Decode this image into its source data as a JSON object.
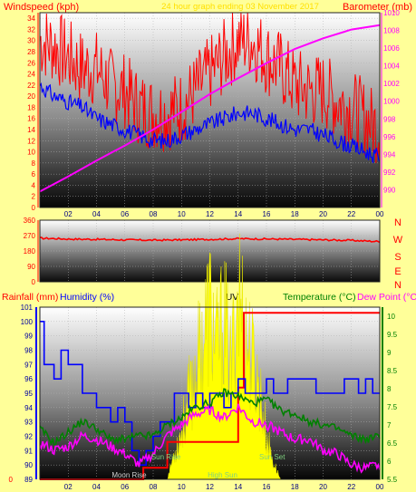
{
  "header": {
    "left_label": "Windspeed (kph)",
    "center_label": "24 hour graph ending 03 November 2017",
    "right_label": "Barometer (mb)"
  },
  "wind_dir_letters": [
    "N",
    "W",
    "S",
    "E",
    "N"
  ],
  "bottom_labels": {
    "rainfall": "Rainfall (mm)",
    "humidity": "Humidity (%)",
    "uv": "UV",
    "temperature": "Temperature (°C)",
    "dewpoint": "Dew Point (°C)"
  },
  "sun_moon_labels": [
    {
      "text": "Moon Rise",
      "hour": 6.3,
      "pos": "bottom",
      "color": "#d0d0d0"
    },
    {
      "text": "Sun Rise",
      "hour": 8.9,
      "pos": "mid",
      "color": "#7fd07f"
    },
    {
      "text": "High Sun",
      "hour": 12.9,
      "pos": "bottom",
      "color": "#7fd07f"
    },
    {
      "text": "Sun Set",
      "hour": 16.4,
      "pos": "mid",
      "color": "#7fd07f"
    }
  ],
  "colors": {
    "background": "#ffff99",
    "wind_gust": "#ff0000",
    "wind_avg": "#0000ff",
    "barometer": "#ff00ff",
    "wind_direction": "#ff0000",
    "rainfall": "#ff0000",
    "humidity": "#0000ff",
    "temperature": "#008000",
    "dewpoint": "#ff00ff",
    "uv": "#ffff00",
    "axis_text": "#ff0000",
    "axis_right_bottom": "#008000"
  },
  "chart_data": [
    {
      "type": "line",
      "title": "24 hour graph ending 03 November 2017",
      "x": {
        "unit": "hour",
        "range": [
          0,
          24
        ],
        "ticks": [
          "02",
          "04",
          "06",
          "08",
          "10",
          "12",
          "14",
          "16",
          "18",
          "20",
          "22",
          "00"
        ]
      },
      "left_axis": {
        "label": "Windspeed (kph)",
        "range": [
          0,
          35
        ],
        "ticks": [
          0,
          2,
          4,
          6,
          8,
          10,
          12,
          14,
          16,
          18,
          20,
          22,
          24,
          26,
          28,
          30,
          32,
          34
        ]
      },
      "right_axis": {
        "label": "Barometer (mb)",
        "range": [
          988,
          1010
        ],
        "ticks": [
          990,
          992,
          994,
          996,
          998,
          1000,
          1002,
          1004,
          1006,
          1008,
          1010
        ]
      },
      "series": [
        {
          "name": "Windspeed (kph)",
          "key": "gust",
          "axis": "left",
          "x": [
            0,
            1,
            2,
            3,
            4,
            5,
            6,
            7,
            8,
            9,
            10,
            11,
            12,
            13,
            14,
            15,
            16,
            17,
            18,
            19,
            20,
            21,
            22,
            23,
            24
          ],
          "values": [
            30,
            29,
            27,
            25,
            25,
            22,
            21,
            18,
            17,
            17,
            18,
            21,
            24,
            27,
            30,
            30,
            27,
            25,
            22,
            21,
            21,
            19,
            18,
            16,
            14
          ]
        },
        {
          "key": "avg",
          "axis": "left",
          "x": [
            0,
            1,
            2,
            3,
            4,
            5,
            6,
            7,
            8,
            9,
            10,
            11,
            12,
            13,
            14,
            15,
            16,
            17,
            18,
            19,
            20,
            21,
            22,
            23,
            24
          ],
          "values": [
            22,
            20,
            19,
            18,
            16,
            15,
            14,
            13,
            12,
            12,
            13,
            14,
            15,
            16,
            17,
            17,
            16,
            15,
            14,
            14,
            13,
            12,
            11,
            10,
            9
          ]
        },
        {
          "name": "Barometer (mb)",
          "key": "baro",
          "axis": "right",
          "x": [
            0,
            2,
            4,
            6,
            8,
            10,
            12,
            14,
            16,
            18,
            20,
            22,
            24
          ],
          "values": [
            989.8,
            991.5,
            993.3,
            995,
            996.8,
            998.8,
            1000.8,
            1002.6,
            1004.3,
            1005.9,
            1007.1,
            1008.1,
            1008.6
          ]
        }
      ]
    },
    {
      "type": "line",
      "x": {
        "unit": "hour",
        "range": [
          0,
          24
        ]
      },
      "y": {
        "range": [
          0,
          360
        ],
        "ticks": [
          0,
          90,
          180,
          270,
          360
        ]
      },
      "series": [
        {
          "key": "direction",
          "x": [
            0,
            2,
            4,
            6,
            8,
            10,
            12,
            14,
            16,
            18,
            20,
            22,
            24
          ],
          "values": [
            255,
            250,
            248,
            245,
            243,
            245,
            248,
            252,
            250,
            248,
            245,
            242,
            235
          ]
        }
      ]
    },
    {
      "type": "line",
      "x": {
        "unit": "hour",
        "range": [
          0,
          24
        ],
        "ticks": [
          "02",
          "04",
          "06",
          "08",
          "10",
          "12",
          "14",
          "16",
          "18",
          "20",
          "22",
          "00"
        ]
      },
      "left_axis": {
        "label": "Humidity (%)",
        "range": [
          89,
          101
        ],
        "ticks": [
          89,
          90,
          91,
          92,
          93,
          94,
          95,
          96,
          97,
          98,
          99,
          100,
          101
        ]
      },
      "right_axis": {
        "label": "Temperature (°C)",
        "range": [
          5.5,
          10.25
        ],
        "ticks": [
          5.5,
          6,
          6.5,
          7,
          7.5,
          8,
          8.5,
          9,
          9.5,
          10
        ]
      },
      "rain_axis": {
        "label": "Rainfall (mm)",
        "ticks": [
          0
        ]
      },
      "series": [
        {
          "name": "Rainfall (mm)",
          "key": "rain",
          "x": [
            0,
            7.3,
            7.3,
            9.0,
            9.0,
            14.0,
            14.0,
            14.4,
            14.4,
            24
          ],
          "values": [
            0,
            0,
            0.04,
            0.04,
            0.13,
            0.13,
            0.32,
            0.32,
            0.58,
            0.58
          ]
        },
        {
          "name": "Humidity (%)",
          "key": "humidity",
          "axis": "left",
          "x": [
            0,
            0.3,
            0.7,
            1,
            1.5,
            2,
            2.5,
            3,
            3.5,
            4,
            4.5,
            5,
            5.5,
            6,
            6.5,
            7,
            7.5,
            8,
            8.5,
            9,
            9.5,
            10,
            10.5,
            11,
            11.5,
            12,
            12.5,
            13,
            13.5,
            14,
            14.5,
            15,
            15.5,
            16,
            16.5,
            17,
            17.5,
            18,
            18.5,
            19,
            19.5,
            20,
            20.5,
            21,
            21.5,
            22,
            22.5,
            23,
            23.5,
            24
          ],
          "values": [
            100,
            97,
            97,
            96,
            98,
            97,
            97,
            95,
            95,
            94,
            94,
            93,
            94,
            93,
            91,
            90,
            91,
            92,
            93,
            93,
            95,
            95,
            94,
            95,
            94,
            95,
            95,
            94,
            95,
            96,
            95,
            95,
            95,
            96,
            95,
            95,
            96,
            96,
            96,
            96,
            95,
            95,
            95,
            95,
            96,
            96,
            95,
            96,
            95,
            95
          ]
        },
        {
          "name": "Temperature (°C)",
          "key": "temp",
          "axis": "right",
          "x": [
            0,
            1,
            2,
            3,
            4,
            5,
            6,
            7,
            8,
            9,
            10,
            11,
            12,
            13,
            14,
            15,
            16,
            17,
            18,
            19,
            20,
            21,
            22,
            23,
            24
          ],
          "values": [
            6.9,
            6.5,
            6.8,
            7.1,
            6.9,
            6.6,
            6.6,
            6.7,
            6.7,
            7.0,
            7.2,
            7.5,
            7.6,
            7.9,
            7.8,
            7.6,
            7.7,
            7.4,
            7.3,
            7.1,
            7.0,
            6.9,
            6.7,
            6.6,
            6.7
          ]
        },
        {
          "name": "Dew Point (°C)",
          "key": "dew",
          "axis": "right",
          "x": [
            0,
            1,
            2,
            3,
            4,
            5,
            6,
            7,
            8,
            9,
            10,
            11,
            12,
            13,
            14,
            15,
            16,
            17,
            18,
            19,
            20,
            21,
            22,
            23,
            24
          ],
          "values": [
            6.5,
            6.3,
            6.4,
            6.7,
            6.6,
            6.4,
            6.2,
            5.9,
            6.2,
            6.7,
            7.0,
            7.3,
            7.4,
            7.2,
            7.5,
            7.1,
            7.0,
            6.8,
            6.6,
            6.6,
            6.3,
            6.2,
            5.9,
            5.8,
            5.9
          ]
        },
        {
          "name": "UV",
          "key": "uv",
          "type": "area",
          "x": [
            0,
            9.0,
            9.5,
            10,
            10.5,
            11,
            11.5,
            12,
            12.5,
            13,
            13.5,
            14,
            14.5,
            15,
            15.5,
            16,
            16.5,
            17,
            24
          ],
          "values": [
            0,
            0,
            0.5,
            0.9,
            1.5,
            2.0,
            2.6,
            3.2,
            2.4,
            3.0,
            2.0,
            3.6,
            2.7,
            2.2,
            1.7,
            0.8,
            0.3,
            0,
            0
          ]
        }
      ]
    }
  ]
}
